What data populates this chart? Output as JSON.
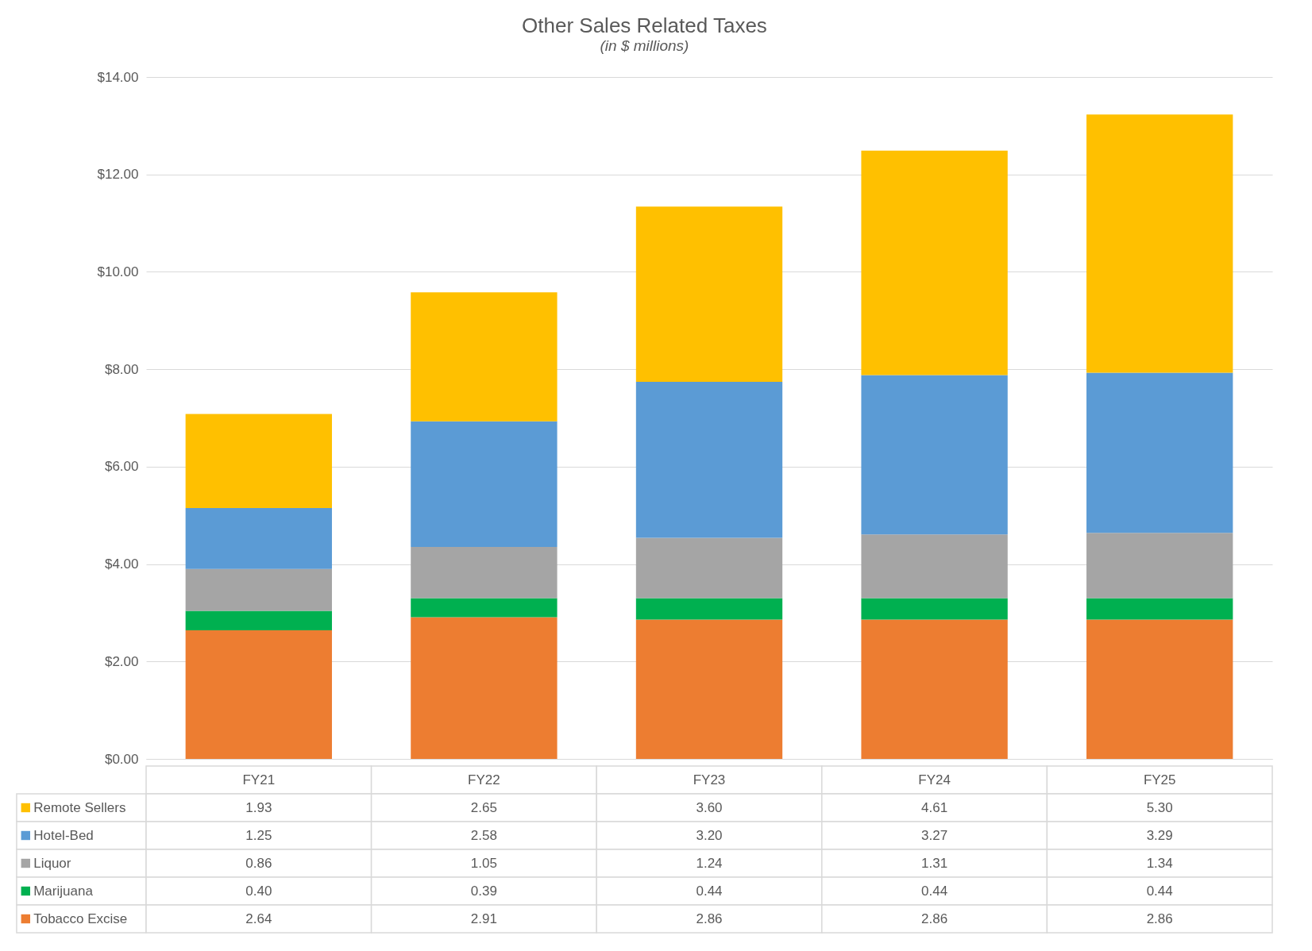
{
  "chart_data": {
    "type": "bar",
    "title": "Other Sales Related Taxes",
    "subtitle": "(in $ millions)",
    "stacked": true,
    "categories": [
      "FY21",
      "FY22",
      "FY23",
      "FY24",
      "FY25"
    ],
    "series": [
      {
        "name": "Tobacco Excise",
        "color": "#ed7d31",
        "values": [
          2.64,
          2.91,
          2.86,
          2.86,
          2.86
        ],
        "value_labels": [
          "2.64",
          "2.91",
          "2.86",
          "2.86",
          "2.86"
        ]
      },
      {
        "name": "Marijuana",
        "color": "#00b050",
        "values": [
          0.4,
          0.39,
          0.44,
          0.44,
          0.44
        ],
        "value_labels": [
          "0.40",
          "0.39",
          "0.44",
          "0.44",
          "0.44"
        ]
      },
      {
        "name": "Liquor",
        "color": "#a5a5a5",
        "values": [
          0.86,
          1.05,
          1.24,
          1.31,
          1.34
        ],
        "value_labels": [
          "0.86",
          "1.05",
          "1.24",
          "1.31",
          "1.34"
        ]
      },
      {
        "name": "Hotel-Bed",
        "color": "#5b9bd5",
        "values": [
          1.25,
          2.58,
          3.2,
          3.27,
          3.29
        ],
        "value_labels": [
          "1.25",
          "2.58",
          "3.20",
          "3.27",
          "3.29"
        ]
      },
      {
        "name": "Remote Sellers",
        "color": "#ffc000",
        "values": [
          1.93,
          2.65,
          3.6,
          4.61,
          5.3
        ],
        "value_labels": [
          "1.93",
          "2.65",
          "3.60",
          "4.61",
          "5.30"
        ]
      }
    ],
    "ylim": [
      0,
      14
    ],
    "yticks": [
      {
        "value": 0,
        "label": "$0.00"
      },
      {
        "value": 2,
        "label": "$2.00"
      },
      {
        "value": 4,
        "label": "$4.00"
      },
      {
        "value": 6,
        "label": "$6.00"
      },
      {
        "value": 8,
        "label": "$8.00"
      },
      {
        "value": 10,
        "label": "$10.00"
      },
      {
        "value": 12,
        "label": "$12.00"
      },
      {
        "value": 14,
        "label": "$14.00"
      }
    ],
    "grid": "y",
    "legend": "bottom left"
  }
}
